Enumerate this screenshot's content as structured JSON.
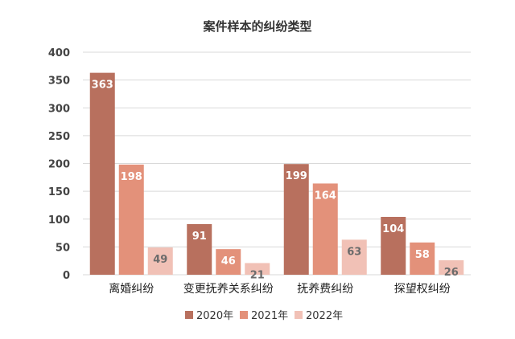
{
  "chart_data": {
    "type": "bar",
    "title": "案件样本的纠纷类型",
    "categories": [
      "离婚纠纷",
      "变更抚养关系纠纷",
      "抚养费纠纷",
      "探望权纠纷"
    ],
    "series": [
      {
        "name": "2020年",
        "values": [
          363,
          91,
          199,
          104
        ],
        "color": "#B8705E",
        "label_color": "#ffffff"
      },
      {
        "name": "2021年",
        "values": [
          198,
          46,
          164,
          58
        ],
        "color": "#E3917A",
        "label_color": "#ffffff"
      },
      {
        "name": "2022年",
        "values": [
          49,
          21,
          63,
          26
        ],
        "color": "#F1C1B6",
        "label_color": "#6b6b6b"
      }
    ],
    "ylim": [
      0,
      400
    ],
    "yticks": [
      0,
      50,
      100,
      150,
      200,
      250,
      300,
      350,
      400
    ],
    "grid": true,
    "legend_position": "bottom",
    "xlabel": "",
    "ylabel": ""
  }
}
